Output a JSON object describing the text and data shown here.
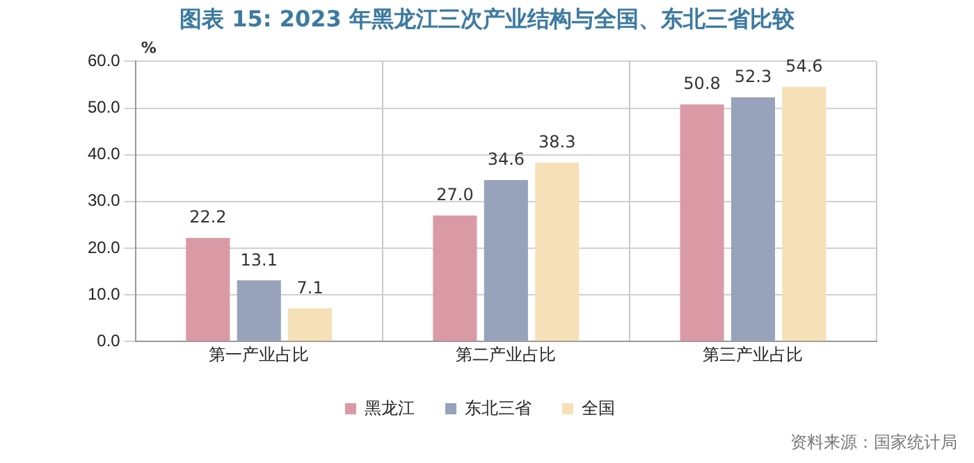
{
  "chart_data": {
    "type": "bar",
    "title": "图表 15: 2023 年黑龙江三次产业结构与全国、东北三省比较",
    "ylabel": "%",
    "categories": [
      "第一产业占比",
      "第二产业占比",
      "第三产业占比"
    ],
    "series": [
      {
        "name": "黑龙江",
        "color": "#d99aa6",
        "values": [
          22.2,
          27.0,
          50.8
        ],
        "value_labels": [
          "22.2",
          "27.0",
          "50.8"
        ]
      },
      {
        "name": "东北三省",
        "color": "#97a3bb",
        "values": [
          13.1,
          34.6,
          52.3
        ],
        "value_labels": [
          "13.1",
          "34.6",
          "52.3"
        ]
      },
      {
        "name": "全国",
        "color": "#f6e0b8",
        "values": [
          7.1,
          38.3,
          54.6
        ],
        "value_labels": [
          "7.1",
          "38.3",
          "54.6"
        ]
      }
    ],
    "ylim": [
      0,
      60
    ],
    "yticks": [
      {
        "value": 0,
        "label": "0.0"
      },
      {
        "value": 10,
        "label": "10.0"
      },
      {
        "value": 20,
        "label": "20.0"
      },
      {
        "value": 30,
        "label": "30.0"
      },
      {
        "value": 40,
        "label": "40.0"
      },
      {
        "value": 50,
        "label": "50.0"
      },
      {
        "value": 60,
        "label": "60.0"
      }
    ],
    "grid": true,
    "legend": "bottom",
    "annotations": [
      "资料来源：国家统计局"
    ]
  }
}
